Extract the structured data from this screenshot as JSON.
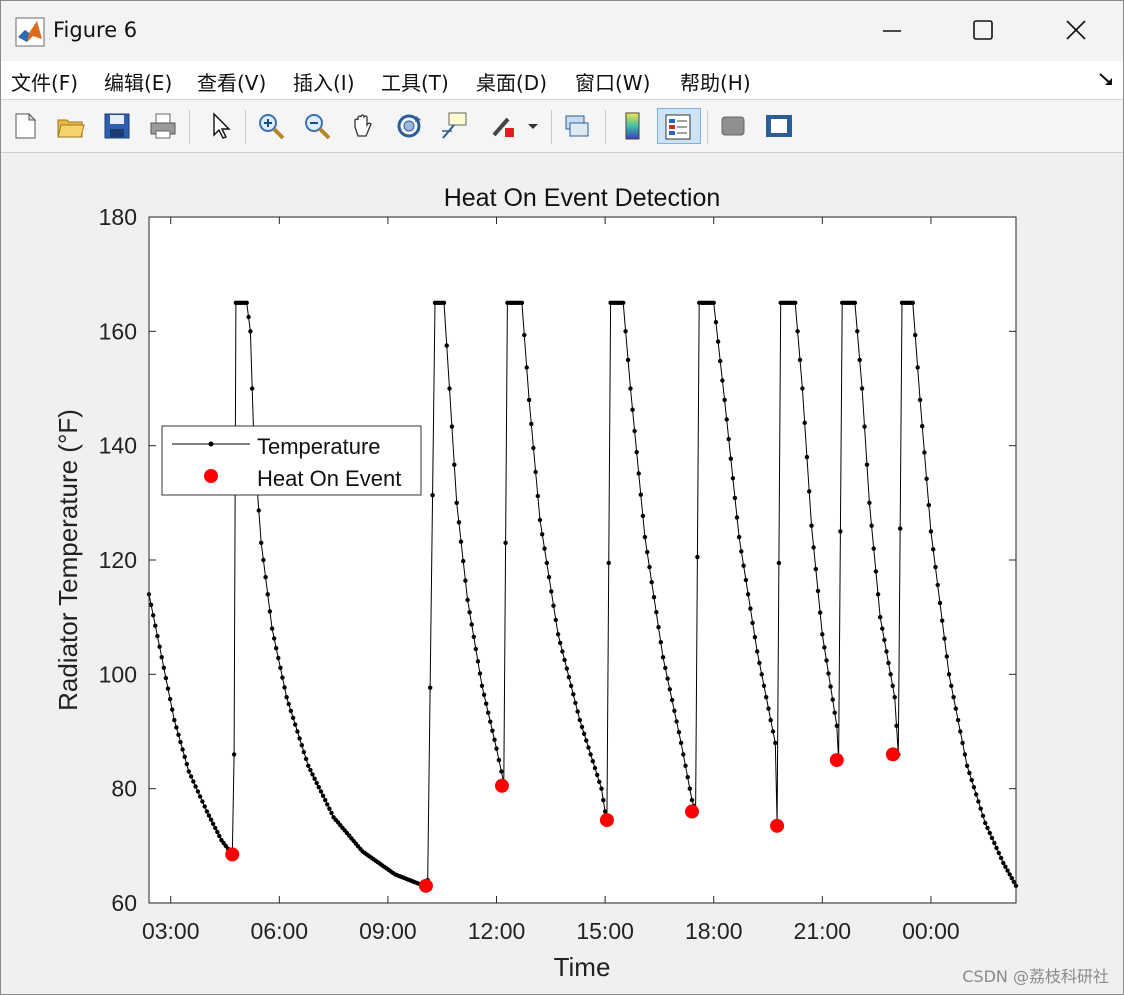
{
  "window": {
    "title": "Figure 6"
  },
  "menu": {
    "items": [
      "文件(F)",
      "编辑(E)",
      "查看(V)",
      "插入(I)",
      "工具(T)",
      "桌面(D)",
      "窗口(W)",
      "帮助(H)"
    ]
  },
  "toolbar": {
    "icons": [
      "new-figure-icon",
      "open-file-icon",
      "save-icon",
      "print-icon",
      "select-arrow-icon",
      "zoom-in-icon",
      "zoom-out-icon",
      "pan-hand-icon",
      "rotate-3d-icon",
      "data-cursor-icon",
      "brush-icon",
      "link-plot-icon",
      "colorbar-icon",
      "legend-icon",
      "hide-tools-icon",
      "show-tools-icon"
    ]
  },
  "watermark": "CSDN @荔枝科研社",
  "chart_data": {
    "type": "line",
    "title": "Heat On Event Detection",
    "xlabel": "Time",
    "ylabel": "Radiator Temperature (°F)",
    "x_ticks": [
      "03:00",
      "06:00",
      "09:00",
      "12:00",
      "15:00",
      "18:00",
      "21:00",
      "00:00"
    ],
    "x_tick_hours": [
      3,
      6,
      9,
      12,
      15,
      18,
      21,
      24
    ],
    "xlim_hours": [
      2.4,
      26.35
    ],
    "ylim": [
      60,
      180
    ],
    "y_ticks": [
      60,
      80,
      100,
      120,
      140,
      160,
      180
    ],
    "legend": {
      "placement": "left",
      "entries": [
        "Temperature",
        "Heat On Event"
      ]
    },
    "colors": {
      "temperature": "#000000",
      "event": "#ff0000"
    },
    "series": [
      {
        "name": "Temperature",
        "style": "line-with-dot-markers",
        "x_hours": [
          2.4,
          2.75,
          3.1,
          3.5,
          4.0,
          4.4,
          4.7,
          4.75,
          4.8,
          5.1,
          5.2,
          5.3,
          5.5,
          5.8,
          6.2,
          6.8,
          7.5,
          8.3,
          9.2,
          10.0,
          10.1,
          10.3,
          10.55,
          10.7,
          10.9,
          11.2,
          11.6,
          12.0,
          12.2,
          12.3,
          12.7,
          12.9,
          13.2,
          13.7,
          14.3,
          14.9,
          15.05,
          15.15,
          15.5,
          15.7,
          16.1,
          16.6,
          17.1,
          17.4,
          17.5,
          17.6,
          18.0,
          18.3,
          18.7,
          19.2,
          19.7,
          19.75,
          19.85,
          20.25,
          20.45,
          20.7,
          21.0,
          21.4,
          21.45,
          21.55,
          21.9,
          22.1,
          22.3,
          22.6,
          23.0,
          23.1,
          23.2,
          23.5,
          23.7,
          24.0,
          24.5,
          25.0,
          25.5,
          26.0,
          26.35
        ],
        "y": [
          114,
          103,
          92,
          83,
          76,
          71,
          68.5,
          86,
          165,
          165,
          160,
          140,
          123,
          108,
          96,
          84,
          75,
          69,
          65,
          63,
          64,
          165,
          165,
          150,
          130,
          113,
          98,
          87,
          81,
          165,
          165,
          148,
          127,
          107,
          92,
          80,
          74,
          165,
          165,
          150,
          124,
          103,
          88,
          78,
          76,
          165,
          165,
          148,
          124,
          104,
          88,
          74,
          165,
          165,
          150,
          126,
          107,
          91,
          85,
          165,
          165,
          150,
          130,
          110,
          96,
          86,
          165,
          165,
          148,
          125,
          100,
          84,
          74,
          67,
          63
        ]
      },
      {
        "name": "Heat On Event",
        "style": "markers",
        "x_hours": [
          4.7,
          10.05,
          12.15,
          15.05,
          17.4,
          19.75,
          21.4,
          22.95
        ],
        "y": [
          68.5,
          63,
          80.5,
          74.5,
          76,
          73.5,
          85,
          86
        ]
      }
    ]
  }
}
